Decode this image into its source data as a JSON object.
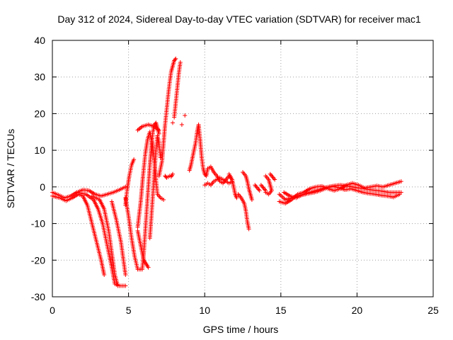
{
  "chart_data": {
    "type": "scatter",
    "title": "Day 312 of 2024, Sidereal Day-to-day VTEC variation (SDTVAR) for receiver mac1",
    "xlabel": "GPS time / hours",
    "ylabel": "SDTVAR / TECUs",
    "xlim": [
      0,
      25
    ],
    "ylim": [
      -30,
      40
    ],
    "xticks": [
      0,
      5,
      10,
      15,
      20,
      25
    ],
    "yticks": [
      -30,
      -20,
      -10,
      0,
      10,
      20,
      30,
      40
    ],
    "xtick_labels": [
      "0",
      "5",
      "10",
      "15",
      "20",
      "25"
    ],
    "ytick_labels": [
      "-30",
      "-20",
      "-10",
      "0",
      "10",
      "20",
      "30",
      "40"
    ],
    "grid": true,
    "marker": "+",
    "color": "#ff0000",
    "series": [
      {
        "name": "SDTVAR",
        "tracks": [
          [
            [
              0.0,
              -1.5
            ],
            [
              0.4,
              -2.2
            ],
            [
              0.8,
              -3.0
            ],
            [
              1.2,
              -2.5
            ],
            [
              1.6,
              -1.5
            ],
            [
              2.0,
              -0.8
            ],
            [
              2.4,
              -1.0
            ],
            [
              2.8,
              -2.0
            ],
            [
              3.2,
              -2.5
            ],
            [
              3.6,
              -2.0
            ],
            [
              4.0,
              -1.5
            ],
            [
              4.4,
              -0.8
            ],
            [
              4.8,
              0.0
            ]
          ],
          [
            [
              0.0,
              -2.5
            ],
            [
              0.5,
              -3.0
            ],
            [
              0.9,
              -3.8
            ],
            [
              1.3,
              -3.0
            ],
            [
              1.7,
              -2.0
            ],
            [
              2.0,
              -2.5
            ],
            [
              2.3,
              -5.0
            ],
            [
              2.6,
              -10.0
            ],
            [
              2.9,
              -15.0
            ],
            [
              3.2,
              -20.0
            ],
            [
              3.4,
              -24.0
            ]
          ],
          [
            [
              1.6,
              -1.5
            ],
            [
              2.2,
              -2.0
            ],
            [
              2.7,
              -3.5
            ],
            [
              3.0,
              -6.0
            ],
            [
              3.3,
              -10.0
            ],
            [
              3.6,
              -16.0
            ],
            [
              3.9,
              -22.0
            ],
            [
              4.1,
              -26.5
            ],
            [
              4.4,
              -27.0
            ],
            [
              4.8,
              -27.0
            ]
          ],
          [
            [
              2.6,
              -2.5
            ],
            [
              3.1,
              -3.5
            ],
            [
              3.4,
              -6.0
            ],
            [
              3.7,
              -12.0
            ],
            [
              3.9,
              -18.0
            ],
            [
              4.1,
              -24.0
            ],
            [
              4.3,
              -27.0
            ]
          ],
          [
            [
              3.9,
              -4.0
            ],
            [
              4.2,
              -9.0
            ],
            [
              4.5,
              -15.0
            ],
            [
              4.7,
              -21.0
            ],
            [
              4.8,
              -24.0
            ]
          ],
          [
            [
              4.8,
              -5.0
            ],
            [
              4.9,
              -1.0
            ],
            [
              5.05,
              3.0
            ],
            [
              5.2,
              6.0
            ],
            [
              5.35,
              7.5
            ]
          ],
          [
            [
              4.8,
              -3.0
            ],
            [
              5.0,
              -8.0
            ],
            [
              5.2,
              -14.0
            ],
            [
              5.4,
              -19.0
            ],
            [
              5.6,
              -22.5
            ],
            [
              5.9,
              -22.5
            ],
            [
              6.0,
              -18.0
            ],
            [
              6.1,
              -12.0
            ],
            [
              6.2,
              -6.0
            ],
            [
              6.3,
              0.0
            ],
            [
              6.4,
              6.0
            ],
            [
              6.5,
              11.0
            ],
            [
              6.6,
              15.0
            ],
            [
              6.7,
              17.0
            ],
            [
              6.8,
              17.5
            ],
            [
              6.9,
              16.0
            ],
            [
              7.0,
              14.5
            ]
          ],
          [
            [
              5.6,
              -11.0
            ],
            [
              5.8,
              -4.0
            ],
            [
              5.95,
              3.0
            ],
            [
              6.1,
              9.0
            ],
            [
              6.25,
              13.0
            ],
            [
              6.4,
              15.0
            ],
            [
              6.55,
              12.0
            ],
            [
              6.7,
              7.0
            ],
            [
              6.8,
              2.0
            ],
            [
              6.9,
              -2.0
            ],
            [
              7.1,
              -3.0
            ],
            [
              7.3,
              -3.5
            ]
          ],
          [
            [
              5.6,
              -12.0
            ],
            [
              5.8,
              -16.0
            ],
            [
              6.0,
              -20.0
            ],
            [
              6.3,
              -22.0
            ]
          ],
          [
            [
              6.4,
              -14.0
            ],
            [
              6.5,
              -8.0
            ],
            [
              6.6,
              -2.0
            ],
            [
              6.7,
              4.0
            ],
            [
              6.8,
              10.0
            ],
            [
              6.9,
              14.0
            ],
            [
              7.0,
              12.0
            ],
            [
              7.1,
              8.0
            ]
          ],
          [
            [
              5.6,
              15.5
            ],
            [
              5.9,
              16.5
            ],
            [
              6.3,
              17.0
            ],
            [
              6.7,
              16.5
            ],
            [
              7.0,
              15.5
            ]
          ],
          [
            [
              7.0,
              3.0
            ],
            [
              7.2,
              7.0
            ],
            [
              7.3,
              12.0
            ],
            [
              7.4,
              17.0
            ],
            [
              7.5,
              21.0
            ],
            [
              7.6,
              25.0
            ],
            [
              7.7,
              28.5
            ],
            [
              7.8,
              31.5
            ],
            [
              7.9,
              33.0
            ],
            [
              8.0,
              34.5
            ],
            [
              8.1,
              35.0
            ]
          ],
          [
            [
              7.4,
              3.0
            ],
            [
              7.5,
              2.5
            ],
            [
              7.7,
              3.0
            ],
            [
              7.8,
              2.8
            ],
            [
              7.9,
              3.5
            ]
          ],
          [
            [
              8.0,
              19.0
            ],
            [
              8.1,
              23.0
            ],
            [
              8.2,
              27.0
            ],
            [
              8.3,
              31.0
            ],
            [
              8.4,
              34.0
            ]
          ],
          [
            [
              8.7,
              19.5
            ]
          ],
          [
            [
              8.5,
              17.0
            ]
          ],
          [
            [
              7.9,
              17.5
            ]
          ],
          [
            [
              9.0,
              4.5
            ],
            [
              9.1,
              6.0
            ],
            [
              9.2,
              8.0
            ],
            [
              9.3,
              10.0
            ],
            [
              9.4,
              12.0
            ],
            [
              9.5,
              15.0
            ],
            [
              9.6,
              17.0
            ],
            [
              9.7,
              13.0
            ],
            [
              9.8,
              8.0
            ],
            [
              9.9,
              5.0
            ],
            [
              10.0,
              3.5
            ],
            [
              10.1,
              3.0
            ],
            [
              10.2,
              5.0
            ],
            [
              10.4,
              5.5
            ],
            [
              10.6,
              4.0
            ],
            [
              10.8,
              3.0
            ],
            [
              11.0,
              1.5
            ],
            [
              11.2,
              1.0
            ],
            [
              11.4,
              2.0
            ],
            [
              11.6,
              3.0
            ],
            [
              11.8,
              2.0
            ]
          ],
          [
            [
              10.0,
              0.5
            ],
            [
              10.2,
              1.0
            ],
            [
              10.4,
              0.5
            ],
            [
              10.6,
              1.5
            ],
            [
              10.8,
              2.0
            ],
            [
              11.0,
              2.5
            ],
            [
              11.2,
              2.0
            ],
            [
              11.4,
              1.5
            ],
            [
              11.6,
              1.0
            ],
            [
              11.8,
              1.5
            ]
          ],
          [
            [
              11.6,
              3.5
            ],
            [
              11.8,
              2.0
            ],
            [
              11.9,
              0.0
            ],
            [
              12.0,
              -2.0
            ],
            [
              12.1,
              -3.0
            ]
          ],
          [
            [
              12.2,
              -2.0
            ],
            [
              12.4,
              -3.0
            ],
            [
              12.6,
              -4.5
            ],
            [
              12.7,
              -6.5
            ],
            [
              12.8,
              -9.5
            ],
            [
              12.9,
              -11.5
            ]
          ],
          [
            [
              12.5,
              4.0
            ],
            [
              12.7,
              3.0
            ],
            [
              12.8,
              1.5
            ],
            [
              12.9,
              -0.5
            ],
            [
              13.0,
              -2.0
            ],
            [
              13.1,
              -3.5
            ]
          ],
          [
            [
              13.3,
              0.5
            ],
            [
              13.6,
              -1.0
            ]
          ],
          [
            [
              14.0,
              3.0
            ],
            [
              14.2,
              2.0
            ],
            [
              14.3,
              0.5
            ],
            [
              14.4,
              -1.0
            ],
            [
              14.2,
              -2.0
            ],
            [
              14.0,
              -1.5
            ]
          ],
          [
            [
              14.3,
              3.5
            ],
            [
              14.6,
              2.0
            ]
          ],
          [
            [
              13.7,
              0.5
            ],
            [
              14.0,
              -1.0
            ]
          ],
          [
            [
              14.9,
              -2.0
            ],
            [
              15.3,
              -3.5
            ],
            [
              15.7,
              -3.0
            ],
            [
              16.1,
              -2.5
            ],
            [
              16.5,
              -2.0
            ],
            [
              16.9,
              -1.5
            ],
            [
              17.3,
              -1.0
            ],
            [
              17.7,
              -0.5
            ],
            [
              18.1,
              0.0
            ],
            [
              18.5,
              0.3
            ],
            [
              18.9,
              0.5
            ],
            [
              19.3,
              0.3
            ],
            [
              19.7,
              0.0
            ],
            [
              20.1,
              -0.3
            ],
            [
              20.5,
              -0.5
            ],
            [
              20.9,
              -0.8
            ],
            [
              21.3,
              -1.0
            ],
            [
              21.7,
              -1.2
            ],
            [
              22.1,
              -1.5
            ],
            [
              22.5,
              -1.5
            ],
            [
              22.9,
              -1.5
            ]
          ],
          [
            [
              14.9,
              -4.0
            ],
            [
              15.3,
              -4.5
            ],
            [
              15.7,
              -3.5
            ],
            [
              16.1,
              -2.0
            ],
            [
              16.5,
              -1.5
            ],
            [
              16.9,
              -0.5
            ],
            [
              17.3,
              0.0
            ],
            [
              17.7,
              0.2
            ],
            [
              18.1,
              -0.5
            ],
            [
              18.5,
              -1.0
            ],
            [
              18.9,
              -0.5
            ],
            [
              19.3,
              0.5
            ],
            [
              19.7,
              1.0
            ],
            [
              20.1,
              0.5
            ],
            [
              20.5,
              -0.3
            ],
            [
              20.9,
              0.0
            ],
            [
              21.3,
              0.3
            ],
            [
              21.7,
              0.0
            ],
            [
              22.1,
              0.5
            ],
            [
              22.5,
              1.0
            ],
            [
              22.9,
              1.5
            ]
          ],
          [
            [
              15.2,
              -1.5
            ],
            [
              15.6,
              -2.5
            ],
            [
              16.0,
              -3.0
            ],
            [
              16.4,
              -2.2
            ],
            [
              16.8,
              -1.8
            ],
            [
              17.2,
              -1.5
            ],
            [
              17.6,
              -1.0
            ],
            [
              18.0,
              -0.3
            ],
            [
              18.4,
              0.2
            ],
            [
              18.8,
              -0.2
            ],
            [
              19.2,
              -0.8
            ],
            [
              19.6,
              -0.5
            ],
            [
              20.0,
              -1.0
            ],
            [
              20.4,
              -1.5
            ],
            [
              20.8,
              -1.8
            ],
            [
              21.2,
              -2.0
            ],
            [
              21.6,
              -2.3
            ],
            [
              22.0,
              -2.5
            ],
            [
              22.4,
              -2.8
            ],
            [
              22.8,
              -2.0
            ]
          ]
        ]
      }
    ]
  }
}
